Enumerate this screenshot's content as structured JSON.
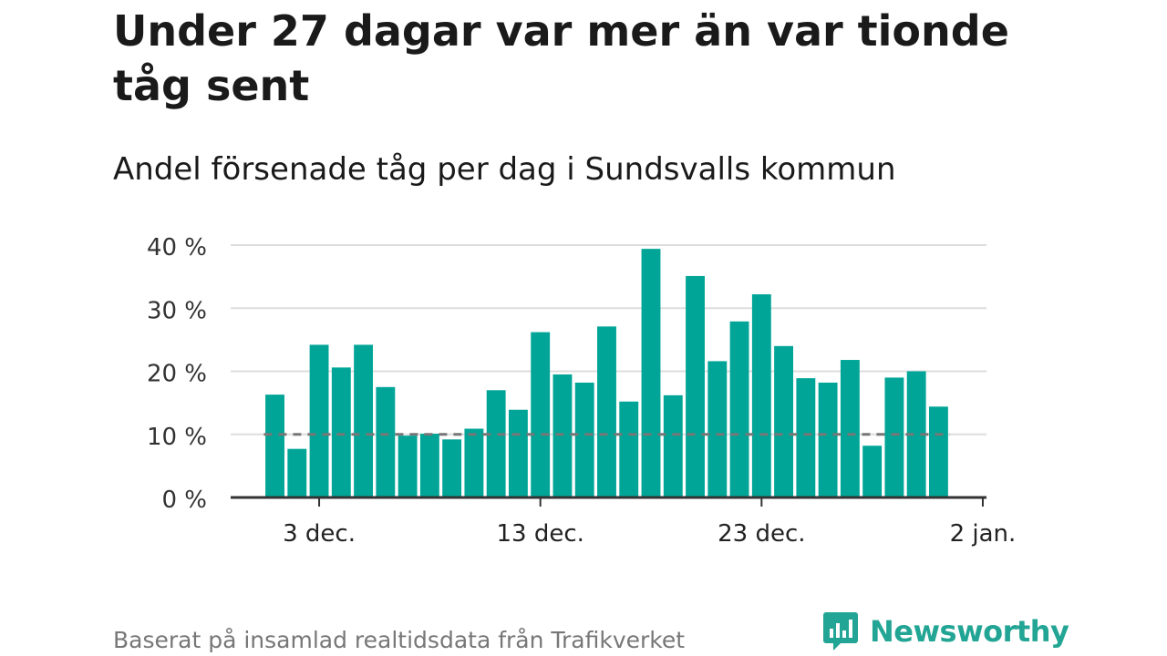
{
  "title": "Under 27 dagar var mer än var tionde tåg sent",
  "subtitle": "Andel försenade tåg per dag i Sundsvalls kommun",
  "footer": {
    "source": "Baserat på insamlad realtidsdata från Trafikverket",
    "brand": "Newsworthy"
  },
  "colors": {
    "bar": "#00a597",
    "reference_line": "#777777",
    "gridline": "#dddddd",
    "axis": "#333333",
    "brand": "#22a594"
  },
  "chart_data": {
    "type": "bar",
    "x": [
      "2021-12-01",
      "2021-12-02",
      "2021-12-03",
      "2021-12-04",
      "2021-12-05",
      "2021-12-06",
      "2021-12-07",
      "2021-12-08",
      "2021-12-09",
      "2021-12-10",
      "2021-12-11",
      "2021-12-12",
      "2021-12-13",
      "2021-12-14",
      "2021-12-15",
      "2021-12-16",
      "2021-12-17",
      "2021-12-18",
      "2021-12-19",
      "2021-12-20",
      "2021-12-21",
      "2021-12-22",
      "2021-12-23",
      "2021-12-24",
      "2021-12-25",
      "2021-12-26",
      "2021-12-27",
      "2021-12-28",
      "2021-12-29",
      "2021-12-30",
      "2021-12-31"
    ],
    "values": [
      16.3,
      7.7,
      24.2,
      20.6,
      24.2,
      17.5,
      9.8,
      10.1,
      9.2,
      10.9,
      17.0,
      13.9,
      26.2,
      19.5,
      18.2,
      27.1,
      15.2,
      39.4,
      16.2,
      35.1,
      21.6,
      27.9,
      32.2,
      24.0,
      18.9,
      18.2,
      21.8,
      8.2,
      19.0,
      20.0,
      14.4
    ],
    "reference_line": 10,
    "ylim": [
      0,
      40
    ],
    "yticks": [
      0,
      10,
      20,
      30,
      40
    ],
    "ytick_labels": [
      "0 %",
      "10 %",
      "20 %",
      "30 %",
      "40 %"
    ],
    "xticks": [
      "2021-12-03",
      "2021-12-13",
      "2021-12-23",
      "2022-01-02"
    ],
    "xtick_labels": [
      "3 dec.",
      "13 dec.",
      "23 dec.",
      "2 jan."
    ],
    "xlabel": "",
    "ylabel": "",
    "grid": true
  }
}
